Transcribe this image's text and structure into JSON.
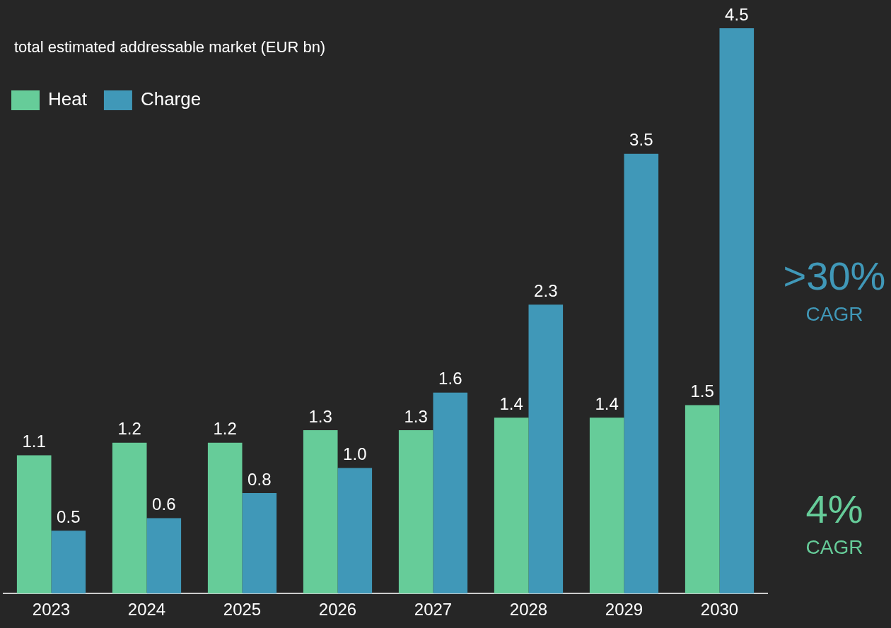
{
  "chart_data": {
    "type": "bar",
    "title": "total estimated addressable market (EUR bn)",
    "categories": [
      "2023",
      "2024",
      "2025",
      "2026",
      "2027",
      "2028",
      "2029",
      "2030"
    ],
    "series": [
      {
        "name": "Heat",
        "color": "#66cc99",
        "values": [
          1.1,
          1.2,
          1.2,
          1.3,
          1.3,
          1.4,
          1.4,
          1.5
        ],
        "value_labels": [
          "1.1",
          "1.2",
          "1.2",
          "1.3",
          "1.3",
          "1.4",
          "1.4",
          "1.5"
        ]
      },
      {
        "name": "Charge",
        "color": "#4098b8",
        "values": [
          0.5,
          0.6,
          0.8,
          1.0,
          1.6,
          2.3,
          3.5,
          4.5
        ],
        "value_labels": [
          "0.5",
          "0.6",
          "0.8",
          "1.0",
          "1.6",
          "2.3",
          "3.5",
          "4.5"
        ]
      }
    ],
    "legend": "top left",
    "grid": false,
    "annotations": [
      ">30%",
      "CAGR",
      "4%",
      "CAGR"
    ]
  }
}
